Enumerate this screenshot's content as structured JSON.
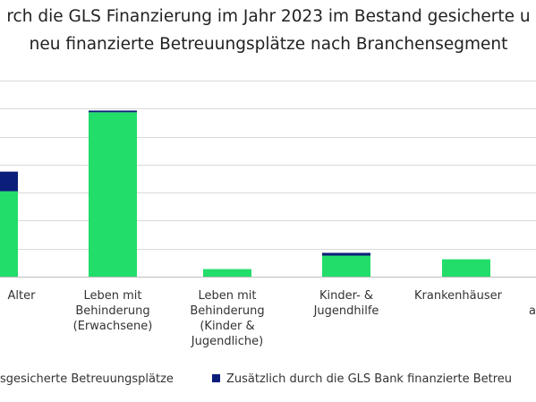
{
  "chart_data": {
    "type": "bar",
    "stacked": true,
    "title_lines": [
      "rch die GLS Finanzierung im Jahr 2023 im Bestand gesicherte u",
      "neu finanzierte Betreuungsplätze nach Branchensegment"
    ],
    "categories": [
      [
        "Alter"
      ],
      [
        "Leben mit",
        "Behinderung",
        "(Erwachsene)"
      ],
      [
        "Leben mit",
        "Behinderung",
        "(Kinder &",
        "Jugendliche)"
      ],
      [
        "Kinder- &",
        "Jugendhilfe"
      ],
      [
        "Krankenhäuser"
      ],
      [
        "",
        "a"
      ]
    ],
    "series": [
      {
        "name": "sgesicherte Betreuungsplätze",
        "color": "#22dd6a",
        "values": [
          3.05,
          5.87,
          0.27,
          0.75,
          0.62,
          0
        ]
      },
      {
        "name": "Zusätzlich durch die GLS Bank finanzierte Betreu",
        "color": "#0b1f7a",
        "values": [
          0.7,
          0.06,
          0,
          0.1,
          0,
          0
        ]
      }
    ],
    "ylim": [
      0,
      7
    ],
    "grid": true,
    "legend_position": "bottom"
  }
}
